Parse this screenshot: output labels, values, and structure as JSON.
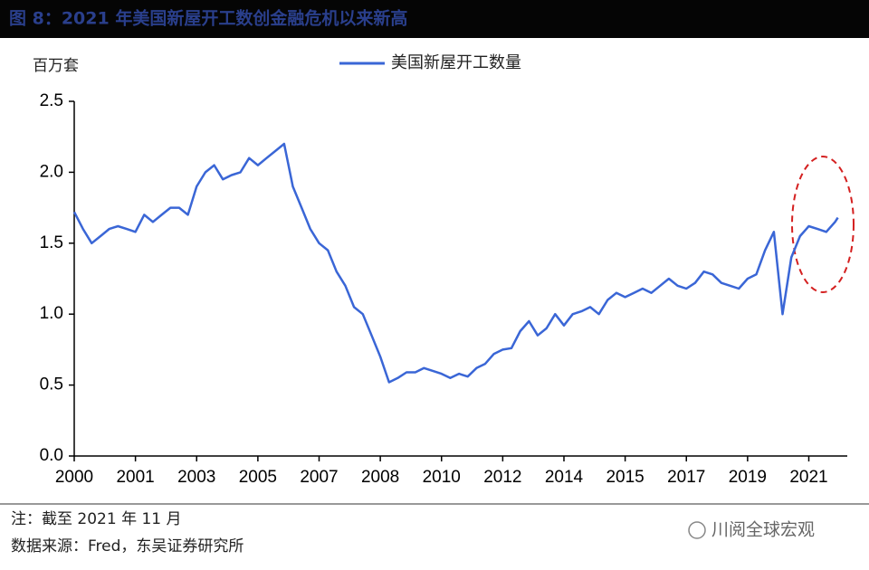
{
  "header": {
    "title": "图 8：2021 年美国新屋开工数创金融危机以来新高"
  },
  "chart_data": {
    "type": "line",
    "y_label": "百万套",
    "xlim": [
      2000,
      2022.1
    ],
    "xticks": [
      {
        "value": 2000,
        "label": "2000"
      },
      {
        "value": 2001.75,
        "label": "2001"
      },
      {
        "value": 2003.5,
        "label": "2003"
      },
      {
        "value": 2005.25,
        "label": "2005"
      },
      {
        "value": 2007,
        "label": "2007"
      },
      {
        "value": 2008.75,
        "label": "2008"
      },
      {
        "value": 2010.5,
        "label": "2010"
      },
      {
        "value": 2012.25,
        "label": "2012"
      },
      {
        "value": 2014,
        "label": "2014"
      },
      {
        "value": 2015.75,
        "label": "2015"
      },
      {
        "value": 2017.5,
        "label": "2017"
      },
      {
        "value": 2019.25,
        "label": "2019"
      },
      {
        "value": 2021,
        "label": "2021"
      }
    ],
    "ylim": [
      0,
      2.5
    ],
    "yticks": [
      {
        "value": 0,
        "label": "0.0"
      },
      0.5,
      {
        "value": 1,
        "label": "1.0"
      },
      1.5,
      {
        "value": 2,
        "label": "2.0"
      },
      2.5
    ],
    "legend": "top",
    "x": [
      2000,
      2000.25,
      2000.5,
      2000.75,
      2001,
      2001.25,
      2001.5,
      2001.75,
      2002,
      2002.25,
      2002.5,
      2002.75,
      2003,
      2003.25,
      2003.5,
      2003.75,
      2004,
      2004.25,
      2004.5,
      2004.75,
      2005,
      2005.25,
      2005.5,
      2005.75,
      2006,
      2006.25,
      2006.5,
      2006.75,
      2007,
      2007.25,
      2007.5,
      2007.75,
      2008,
      2008.25,
      2008.5,
      2008.75,
      2009,
      2009.25,
      2009.5,
      2009.75,
      2010,
      2010.25,
      2010.5,
      2010.75,
      2011,
      2011.25,
      2011.5,
      2011.75,
      2012,
      2012.25,
      2012.5,
      2012.75,
      2013,
      2013.25,
      2013.5,
      2013.75,
      2014,
      2014.25,
      2014.5,
      2014.75,
      2015,
      2015.25,
      2015.5,
      2015.75,
      2016,
      2016.25,
      2016.5,
      2016.75,
      2017,
      2017.25,
      2017.5,
      2017.75,
      2018,
      2018.25,
      2018.5,
      2018.75,
      2019,
      2019.25,
      2019.5,
      2019.75,
      2020,
      2020.25,
      2020.5,
      2020.75,
      2021,
      2021.25,
      2021.5,
      2021.75,
      2021.83
    ],
    "series": [
      {
        "name": "美国新屋开工数量",
        "color": "#3a66d6",
        "values": [
          1.72,
          1.6,
          1.5,
          1.55,
          1.6,
          1.62,
          1.6,
          1.58,
          1.7,
          1.65,
          1.7,
          1.75,
          1.75,
          1.7,
          1.9,
          2.0,
          2.05,
          1.95,
          1.98,
          2.0,
          2.1,
          2.05,
          2.1,
          2.15,
          2.2,
          1.9,
          1.75,
          1.6,
          1.5,
          1.45,
          1.3,
          1.2,
          1.05,
          1.0,
          0.85,
          0.7,
          0.52,
          0.55,
          0.59,
          0.59,
          0.62,
          0.6,
          0.58,
          0.55,
          0.58,
          0.56,
          0.62,
          0.65,
          0.72,
          0.75,
          0.76,
          0.88,
          0.95,
          0.85,
          0.9,
          1.0,
          0.92,
          1.0,
          1.02,
          1.05,
          1.0,
          1.1,
          1.15,
          1.12,
          1.15,
          1.18,
          1.15,
          1.2,
          1.25,
          1.2,
          1.18,
          1.22,
          1.3,
          1.28,
          1.22,
          1.2,
          1.18,
          1.25,
          1.28,
          1.45,
          1.58,
          1.0,
          1.4,
          1.55,
          1.62,
          1.6,
          1.58,
          1.65,
          1.68
        ]
      }
    ]
  },
  "footer": {
    "note": "注：截至 2021 年 11 月",
    "source": "数据来源：Fred，东吴证券研究所",
    "watermark": "川阅全球宏观"
  }
}
